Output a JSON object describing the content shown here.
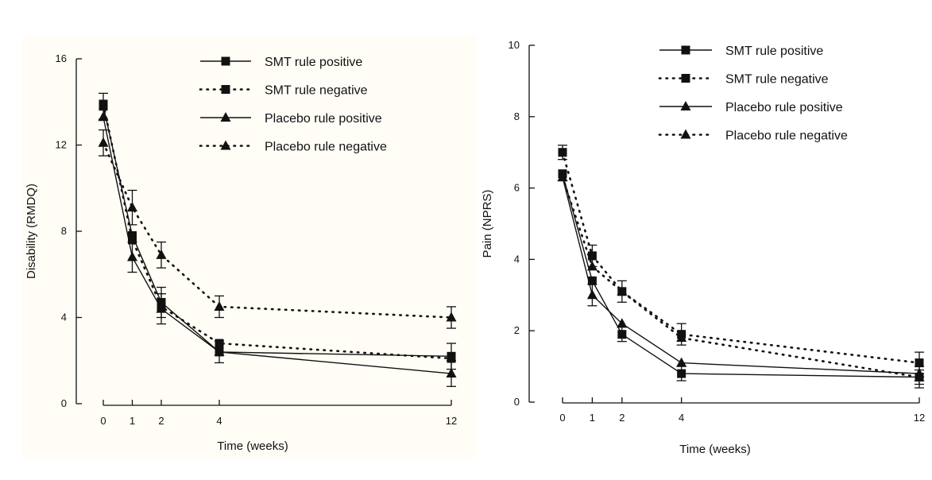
{
  "chart_data": [
    {
      "type": "line",
      "xlabel": "Time (weeks)",
      "ylabel": "Disability (RMDQ)",
      "x": [
        0,
        1,
        2,
        4,
        12
      ],
      "xticks": [
        "0",
        "1",
        "2",
        "4",
        "12"
      ],
      "yticks": [
        "0",
        "4",
        "8",
        "12",
        "16"
      ],
      "xlim": [
        0,
        12
      ],
      "ylim": [
        0,
        16
      ],
      "grid": false,
      "legend": "top-right",
      "series": [
        {
          "name": "SMT rule positive",
          "marker": "square",
          "style": "solid",
          "values": [
            13.8,
            7.8,
            4.7,
            2.4,
            2.2
          ],
          "err": [
            0.6,
            0,
            0.7,
            0.5,
            0.6
          ]
        },
        {
          "name": "SMT rule negative",
          "marker": "square",
          "style": "dotted",
          "values": [
            13.9,
            7.6,
            4.5,
            2.8,
            2.1
          ],
          "err": [
            0,
            0,
            0,
            0,
            0
          ]
        },
        {
          "name": "Placebo rule positive",
          "marker": "triangle",
          "style": "solid",
          "values": [
            13.3,
            6.8,
            4.4,
            2.4,
            1.4
          ],
          "err": [
            0,
            0.7,
            0.7,
            0,
            0.6
          ]
        },
        {
          "name": "Placebo rule negative",
          "marker": "triangle",
          "style": "dotted",
          "values": [
            12.1,
            9.1,
            6.9,
            4.5,
            4.0
          ],
          "err": [
            0.6,
            0.8,
            0.6,
            0.5,
            0.5
          ]
        }
      ]
    },
    {
      "type": "line",
      "xlabel": "Time (weeks)",
      "ylabel": "Pain (NPRS)",
      "x": [
        0,
        1,
        2,
        4,
        12
      ],
      "xticks": [
        "0",
        "1",
        "2",
        "4",
        "12"
      ],
      "yticks": [
        "0",
        "2",
        "4",
        "6",
        "8",
        "10"
      ],
      "xlim": [
        0,
        12
      ],
      "ylim": [
        0,
        10
      ],
      "grid": false,
      "legend": "top-right",
      "series": [
        {
          "name": "SMT rule positive",
          "marker": "square",
          "style": "solid",
          "values": [
            6.4,
            3.4,
            1.9,
            0.8,
            0.7
          ],
          "err": [
            0,
            0,
            0.2,
            0.2,
            0.2
          ]
        },
        {
          "name": "SMT rule negative",
          "marker": "square",
          "style": "dotted",
          "values": [
            7.0,
            4.1,
            3.1,
            1.9,
            1.1
          ],
          "err": [
            0.2,
            0.3,
            0.3,
            0.3,
            0.3
          ]
        },
        {
          "name": "Placebo rule positive",
          "marker": "triangle",
          "style": "solid",
          "values": [
            6.3,
            3.0,
            2.2,
            1.1,
            0.8
          ],
          "err": [
            0,
            0.3,
            0,
            0,
            0
          ]
        },
        {
          "name": "Placebo rule negative",
          "marker": "triangle",
          "style": "dotted",
          "values": [
            6.3,
            3.8,
            3.1,
            1.8,
            0.7
          ],
          "err": [
            0,
            0,
            0,
            0,
            0.3
          ]
        }
      ]
    }
  ]
}
